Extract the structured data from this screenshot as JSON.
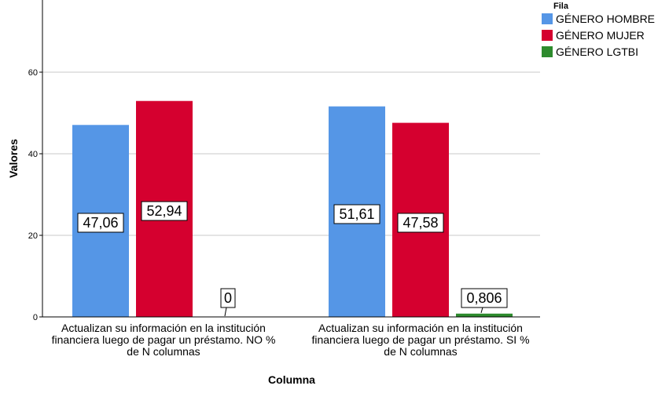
{
  "chart_data": {
    "type": "bar",
    "categories": [
      [
        "Actualizan su información en la institución",
        "financiera luego de pagar un préstamo. NO %",
        "de N columnas"
      ],
      [
        "Actualizan su información en la institución",
        "financiera luego de pagar un préstamo. SI %",
        "de N columnas"
      ]
    ],
    "series": [
      {
        "name": "GÉNERO HOMBRE",
        "color": "#5596e6",
        "values": [
          47.06,
          51.61
        ],
        "labels": [
          "47,06",
          "51,61"
        ]
      },
      {
        "name": "GÉNERO MUJER",
        "color": "#d5002f",
        "values": [
          52.94,
          47.58
        ],
        "labels": [
          "52,94",
          "47,58"
        ]
      },
      {
        "name": "GÉNERO LGTBI",
        "color": "#2e8b2e",
        "values": [
          0,
          0.806
        ],
        "labels": [
          "0",
          "0,806"
        ]
      }
    ],
    "xlabel": "Columna",
    "ylabel": "Valores",
    "ylim": [
      0,
      60
    ],
    "yticks": [
      0,
      20,
      40,
      60
    ],
    "ytick_labels": [
      "0",
      "20",
      "40",
      "60"
    ],
    "grid": true,
    "legend_title": "Fila",
    "legend_position": "top-right"
  }
}
